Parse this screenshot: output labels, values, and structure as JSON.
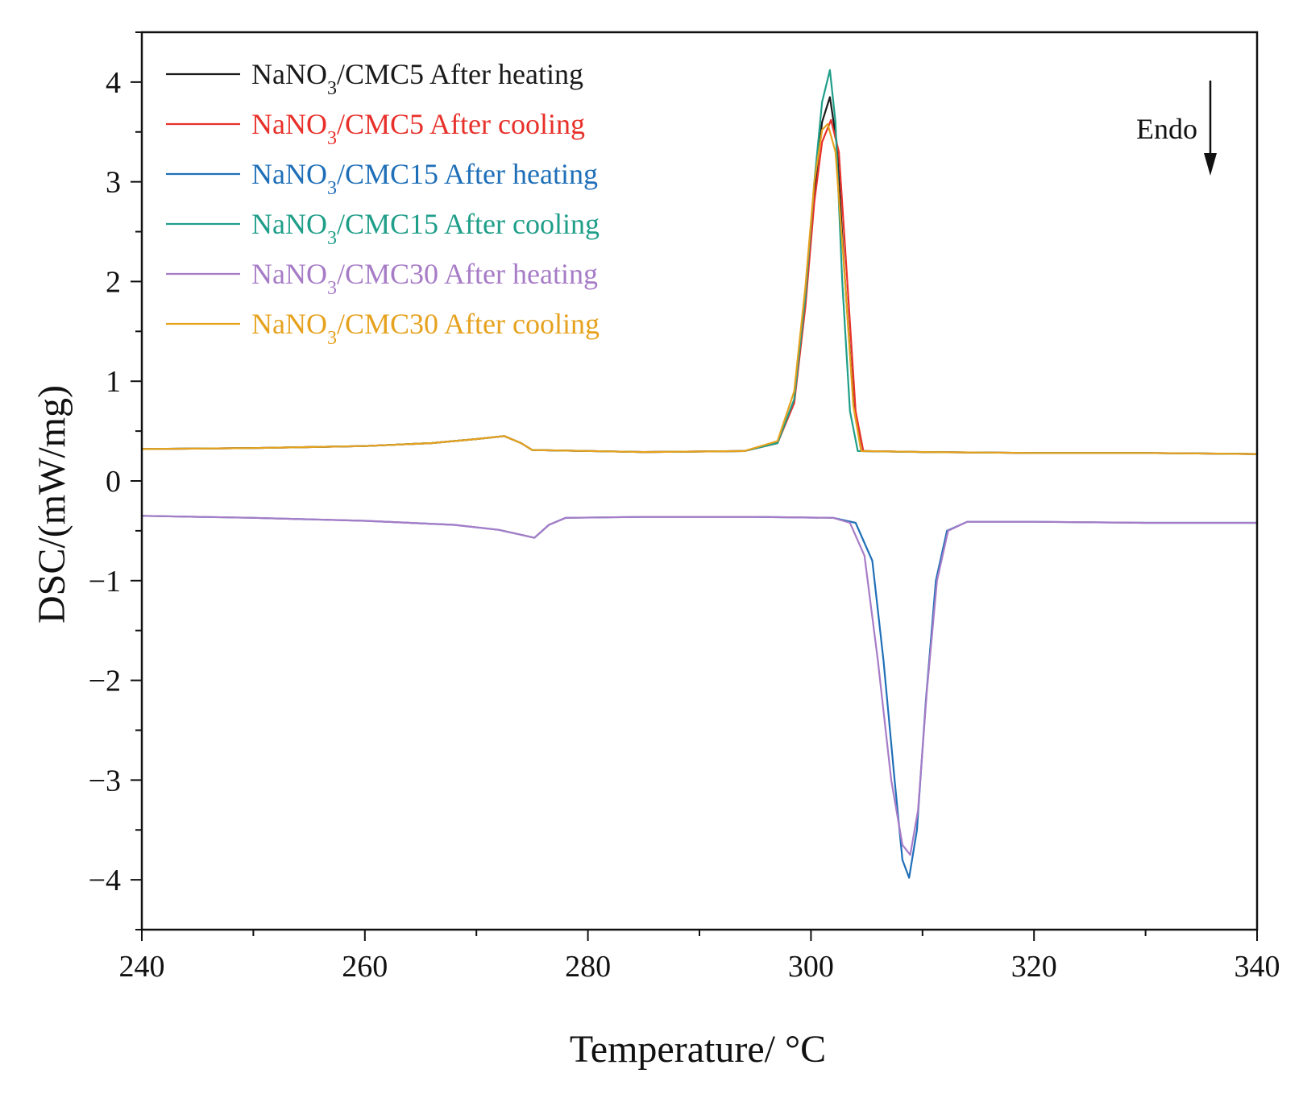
{
  "chart_data": {
    "type": "line",
    "title": "",
    "xlabel": "Temperature/ °C",
    "ylabel": "DSC/(mW/mg)",
    "xlim": [
      240,
      340
    ],
    "ylim": [
      -4.5,
      4.5
    ],
    "xticks": [
      240,
      260,
      280,
      300,
      320,
      340
    ],
    "xtick_labels": [
      "240",
      "260",
      "280",
      "300",
      "320",
      "340"
    ],
    "yticks": [
      -4,
      -3,
      -2,
      -1,
      0,
      1,
      2,
      3,
      4
    ],
    "ytick_labels": [
      "−4",
      "−3",
      "−2",
      "−1",
      "0",
      "1",
      "2",
      "3",
      "4"
    ],
    "grid": false,
    "legend_position": "top-left",
    "annotation": {
      "text": "Endo",
      "direction": "down"
    },
    "series": [
      {
        "name": "NaNO3/CMC5 After heating",
        "label_prefix": "NaNO",
        "label_sub": "3",
        "label_suffix": "/CMC5 After heating",
        "color": "#1a1a1a",
        "x": [
          240,
          250,
          260,
          266,
          270,
          272.5,
          274,
          275,
          285,
          294,
          297,
          298.5,
          299.5,
          300.3,
          301,
          301.7,
          302.3,
          303,
          303.8,
          304.5,
          310,
          320,
          330,
          340
        ],
        "y": [
          0.32,
          0.33,
          0.35,
          0.38,
          0.42,
          0.45,
          0.38,
          0.31,
          0.29,
          0.3,
          0.38,
          0.8,
          1.8,
          2.9,
          3.6,
          3.85,
          3.4,
          2.1,
          0.8,
          0.3,
          0.29,
          0.28,
          0.28,
          0.27
        ]
      },
      {
        "name": "NaNO3/CMC5 After cooling",
        "label_prefix": "NaNO",
        "label_sub": "3",
        "label_suffix": "/CMC5 After cooling",
        "color": "#e8302a",
        "x": [
          240,
          250,
          260,
          266,
          270,
          272.5,
          274,
          275,
          285,
          294,
          297,
          298.5,
          299.5,
          300.3,
          301,
          301.8,
          302.5,
          303.2,
          304,
          304.7,
          310,
          320,
          330,
          340
        ],
        "y": [
          0.32,
          0.33,
          0.35,
          0.38,
          0.42,
          0.45,
          0.38,
          0.31,
          0.29,
          0.3,
          0.38,
          0.78,
          1.75,
          2.8,
          3.4,
          3.62,
          3.3,
          2.1,
          0.7,
          0.3,
          0.29,
          0.28,
          0.28,
          0.27
        ]
      },
      {
        "name": "NaNO3/CMC15 After heating",
        "label_prefix": "NaNO",
        "label_sub": "3",
        "label_suffix": "/CMC15 After heating",
        "color": "#1f6fb8",
        "x": [
          240,
          250,
          260,
          268,
          272,
          274,
          275.2,
          276.5,
          278,
          285,
          295,
          302,
          304,
          305.5,
          306.5,
          307.5,
          308.2,
          308.8,
          309.5,
          310.3,
          311.2,
          312.2,
          314,
          320,
          330,
          340
        ],
        "y": [
          -0.35,
          -0.37,
          -0.4,
          -0.44,
          -0.49,
          -0.54,
          -0.57,
          -0.44,
          -0.37,
          -0.36,
          -0.36,
          -0.37,
          -0.42,
          -0.8,
          -1.8,
          -3.0,
          -3.8,
          -3.98,
          -3.5,
          -2.2,
          -1.0,
          -0.5,
          -0.41,
          -0.41,
          -0.42,
          -0.42
        ]
      },
      {
        "name": "NaNO3/CMC15 After cooling",
        "label_prefix": "NaNO",
        "label_sub": "3",
        "label_suffix": "/CMC15 After cooling",
        "color": "#1f9e89",
        "x": [
          240,
          250,
          260,
          266,
          270,
          272.5,
          274,
          275,
          285,
          294,
          297,
          298.5,
          299.5,
          300.3,
          301,
          301.7,
          302.2,
          302.8,
          303.5,
          304.2,
          310,
          320,
          330,
          340
        ],
        "y": [
          0.32,
          0.33,
          0.35,
          0.38,
          0.42,
          0.45,
          0.38,
          0.31,
          0.29,
          0.3,
          0.38,
          0.82,
          1.85,
          3.0,
          3.8,
          4.12,
          3.6,
          2.0,
          0.7,
          0.3,
          0.29,
          0.28,
          0.28,
          0.27
        ]
      },
      {
        "name": "NaNO3/CMC30 After heating",
        "label_prefix": "NaNO",
        "label_sub": "3",
        "label_suffix": "/CMC30 After heating",
        "color": "#a77cc7",
        "x": [
          240,
          250,
          260,
          268,
          272,
          274,
          275.2,
          276.5,
          278,
          285,
          295,
          302,
          303.5,
          304.8,
          306,
          307.2,
          308.2,
          308.9,
          309.6,
          310.4,
          311.3,
          312.3,
          314,
          320,
          330,
          340
        ],
        "y": [
          -0.35,
          -0.37,
          -0.4,
          -0.44,
          -0.49,
          -0.54,
          -0.57,
          -0.44,
          -0.37,
          -0.36,
          -0.36,
          -0.37,
          -0.42,
          -0.75,
          -1.8,
          -3.0,
          -3.65,
          -3.75,
          -3.3,
          -2.1,
          -1.0,
          -0.5,
          -0.41,
          -0.41,
          -0.42,
          -0.42
        ]
      },
      {
        "name": "NaNO3/CMC30 After cooling",
        "label_prefix": "NaNO",
        "label_sub": "3",
        "label_suffix": "/CMC30 After cooling",
        "color": "#e6a21e",
        "x": [
          240,
          250,
          260,
          266,
          270,
          272.5,
          274,
          275,
          285,
          294,
          297,
          298.5,
          299.5,
          300.3,
          301,
          301.5,
          302.2,
          303,
          303.8,
          304.5,
          310,
          320,
          330,
          340
        ],
        "y": [
          0.32,
          0.33,
          0.35,
          0.38,
          0.42,
          0.45,
          0.38,
          0.31,
          0.29,
          0.3,
          0.4,
          0.9,
          1.95,
          3.0,
          3.52,
          3.58,
          3.3,
          2.1,
          0.75,
          0.3,
          0.29,
          0.28,
          0.28,
          0.27
        ]
      }
    ]
  }
}
